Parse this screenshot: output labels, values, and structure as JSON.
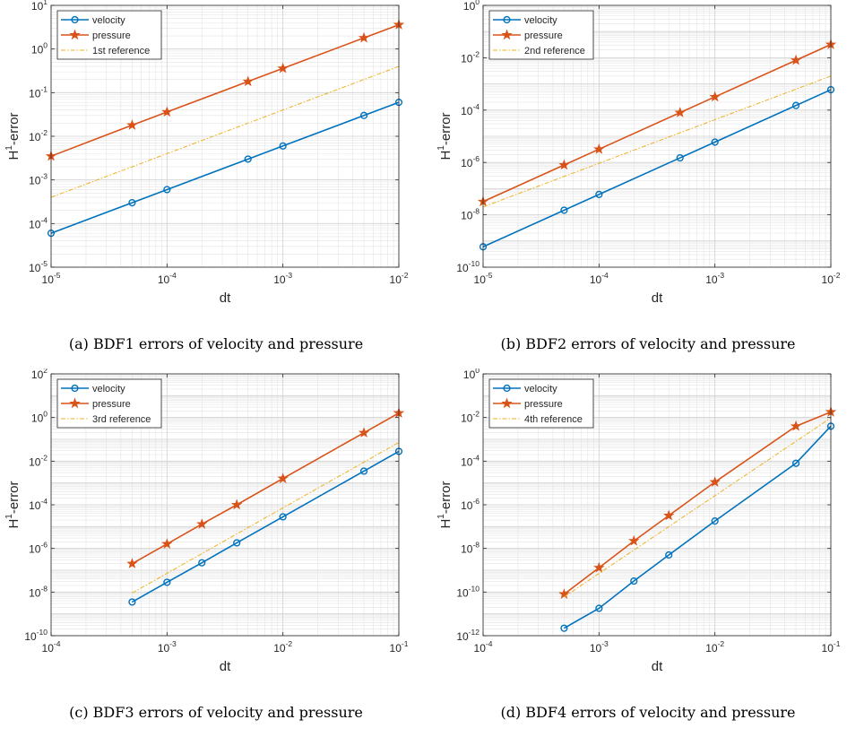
{
  "colors": {
    "velocity": "#0072BD",
    "pressure": "#D95319",
    "reference": "#EDB120"
  },
  "chart_data": [
    {
      "type": "line",
      "caption": "(a) BDF1 errors of velocity and pressure",
      "xlabel": "dt",
      "ylabel_main": "H",
      "ylabel_sup": "1",
      "ylabel_tail": "-error",
      "xscale": "log",
      "yscale": "log",
      "xlim": [
        1e-05,
        0.01
      ],
      "ylim": [
        1e-05,
        10
      ],
      "xticks": [
        1e-05,
        0.0001,
        0.001,
        0.01
      ],
      "xtick_labels": [
        {
          "b": "10",
          "e": "-5"
        },
        {
          "b": "10",
          "e": "-4"
        },
        {
          "b": "10",
          "e": "-3"
        },
        {
          "b": "10",
          "e": "-2"
        }
      ],
      "yticks": [
        1e-05,
        0.0001,
        0.001,
        0.01,
        0.1,
        1,
        10
      ],
      "ytick_labels": [
        {
          "b": "10",
          "e": "-5"
        },
        {
          "b": "10",
          "e": "-4"
        },
        {
          "b": "10",
          "e": "-3"
        },
        {
          "b": "10",
          "e": "-2"
        },
        {
          "b": "10",
          "e": "-1"
        },
        {
          "b": "10",
          "e": "0"
        },
        {
          "b": "10",
          "e": "1"
        }
      ],
      "grid": true,
      "legend_position": "top-left",
      "series": [
        {
          "name": "velocity",
          "marker": "circle",
          "x": [
            1e-05,
            5e-05,
            0.0001,
            0.0005,
            0.001,
            0.005,
            0.01
          ],
          "y": [
            6e-05,
            0.0003,
            0.0006,
            0.003,
            0.006,
            0.03,
            0.06
          ]
        },
        {
          "name": "pressure",
          "marker": "star",
          "x": [
            1e-05,
            5e-05,
            0.0001,
            0.0005,
            0.001,
            0.005,
            0.01
          ],
          "y": [
            0.0035,
            0.018,
            0.036,
            0.18,
            0.36,
            1.8,
            3.6
          ]
        },
        {
          "name": "1st reference",
          "marker": "none",
          "dash": true,
          "x": [
            1e-05,
            0.01
          ],
          "y": [
            0.0004,
            0.4
          ]
        }
      ]
    },
    {
      "type": "line",
      "caption": "(b) BDF2 errors of velocity and pressure",
      "xlabel": "dt",
      "ylabel_main": "H",
      "ylabel_sup": "1",
      "ylabel_tail": "-error",
      "xscale": "log",
      "yscale": "log",
      "xlim": [
        1e-05,
        0.01
      ],
      "ylim": [
        1e-10,
        1
      ],
      "xticks": [
        1e-05,
        0.0001,
        0.001,
        0.01
      ],
      "xtick_labels": [
        {
          "b": "10",
          "e": "-5"
        },
        {
          "b": "10",
          "e": "-4"
        },
        {
          "b": "10",
          "e": "-3"
        },
        {
          "b": "10",
          "e": "-2"
        }
      ],
      "yticks": [
        1e-10,
        1e-08,
        1e-06,
        0.0001,
        0.01,
        1
      ],
      "ytick_labels": [
        {
          "b": "10",
          "e": "-10"
        },
        {
          "b": "10",
          "e": "-8"
        },
        {
          "b": "10",
          "e": "-6"
        },
        {
          "b": "10",
          "e": "-4"
        },
        {
          "b": "10",
          "e": "-2"
        },
        {
          "b": "10",
          "e": "0"
        }
      ],
      "grid": true,
      "legend_position": "top-left",
      "series": [
        {
          "name": "velocity",
          "marker": "circle",
          "x": [
            1e-05,
            5e-05,
            0.0001,
            0.0005,
            0.001,
            0.005,
            0.01
          ],
          "y": [
            6e-10,
            1.5e-08,
            6e-08,
            1.5e-06,
            6e-06,
            0.00015,
            0.0006
          ]
        },
        {
          "name": "pressure",
          "marker": "star",
          "x": [
            1e-05,
            5e-05,
            0.0001,
            0.0005,
            0.001,
            0.005,
            0.01
          ],
          "y": [
            3.2e-08,
            8e-07,
            3.2e-06,
            8e-05,
            0.00032,
            0.008,
            0.032
          ]
        },
        {
          "name": "2nd reference",
          "marker": "none",
          "dash": true,
          "x": [
            1e-05,
            0.01
          ],
          "y": [
            2e-08,
            0.002
          ]
        }
      ]
    },
    {
      "type": "line",
      "caption": "(c) BDF3 errors of velocity and pressure",
      "xlabel": "dt",
      "ylabel_main": "H",
      "ylabel_sup": "1",
      "ylabel_tail": "-error",
      "xscale": "log",
      "yscale": "log",
      "xlim": [
        0.0001,
        0.1
      ],
      "ylim": [
        1e-10,
        100
      ],
      "xticks": [
        0.0001,
        0.001,
        0.01,
        0.1
      ],
      "xtick_labels": [
        {
          "b": "10",
          "e": "-4"
        },
        {
          "b": "10",
          "e": "-3"
        },
        {
          "b": "10",
          "e": "-2"
        },
        {
          "b": "10",
          "e": "-1"
        }
      ],
      "yticks": [
        1e-10,
        1e-08,
        1e-06,
        0.0001,
        0.01,
        1,
        100
      ],
      "ytick_labels": [
        {
          "b": "10",
          "e": "-10"
        },
        {
          "b": "10",
          "e": "-8"
        },
        {
          "b": "10",
          "e": "-6"
        },
        {
          "b": "10",
          "e": "-4"
        },
        {
          "b": "10",
          "e": "-2"
        },
        {
          "b": "10",
          "e": "0"
        },
        {
          "b": "10",
          "e": "2"
        }
      ],
      "grid": true,
      "legend_position": "top-left",
      "series": [
        {
          "name": "velocity",
          "marker": "circle",
          "x": [
            0.0005,
            0.001,
            0.002,
            0.004,
            0.01,
            0.05,
            0.1
          ],
          "y": [
            3.5e-09,
            2.8e-08,
            2.2e-07,
            1.8e-06,
            2.8e-05,
            0.0035,
            0.028
          ]
        },
        {
          "name": "pressure",
          "marker": "star",
          "x": [
            0.0005,
            0.001,
            0.002,
            0.004,
            0.01,
            0.05,
            0.1
          ],
          "y": [
            2e-07,
            1.6e-06,
            1.3e-05,
            0.0001,
            0.0016,
            0.2,
            1.6
          ]
        },
        {
          "name": "3rd reference",
          "marker": "none",
          "dash": true,
          "x": [
            0.0005,
            0.1
          ],
          "y": [
            9e-09,
            0.072
          ]
        }
      ]
    },
    {
      "type": "line",
      "caption": "(d) BDF4 errors of velocity and pressure",
      "xlabel": "dt",
      "ylabel_main": "H",
      "ylabel_sup": "1",
      "ylabel_tail": "-error",
      "xscale": "log",
      "yscale": "log",
      "xlim": [
        0.0001,
        0.1
      ],
      "ylim": [
        1e-12,
        1
      ],
      "xticks": [
        0.0001,
        0.001,
        0.01,
        0.1
      ],
      "xtick_labels": [
        {
          "b": "10",
          "e": "-4"
        },
        {
          "b": "10",
          "e": "-3"
        },
        {
          "b": "10",
          "e": "-2"
        },
        {
          "b": "10",
          "e": "-1"
        }
      ],
      "yticks": [
        1e-12,
        1e-10,
        1e-08,
        1e-06,
        0.0001,
        0.01,
        1
      ],
      "ytick_labels": [
        {
          "b": "10",
          "e": "-12"
        },
        {
          "b": "10",
          "e": "-10"
        },
        {
          "b": "10",
          "e": "-8"
        },
        {
          "b": "10",
          "e": "-6"
        },
        {
          "b": "10",
          "e": "-4"
        },
        {
          "b": "10",
          "e": "-2"
        },
        {
          "b": "10",
          "e": "0"
        }
      ],
      "grid": true,
      "legend_position": "top-left",
      "series": [
        {
          "name": "velocity",
          "marker": "circle",
          "x": [
            0.0005,
            0.001,
            0.002,
            0.004,
            0.01,
            0.05,
            0.1
          ],
          "y": [
            2.2e-12,
            1.8e-11,
            3.2e-10,
            5e-09,
            1.8e-07,
            8e-05,
            0.004
          ]
        },
        {
          "name": "pressure",
          "marker": "star",
          "x": [
            0.0005,
            0.001,
            0.002,
            0.004,
            0.01,
            0.05,
            0.1
          ],
          "y": [
            8e-11,
            1.3e-09,
            2.2e-08,
            3.2e-07,
            1.1e-05,
            0.004,
            0.018
          ]
        },
        {
          "name": "4th reference",
          "marker": "none",
          "dash": true,
          "x": [
            0.0005,
            0.1
          ],
          "y": [
            6e-11,
            0.0096
          ]
        }
      ]
    }
  ]
}
